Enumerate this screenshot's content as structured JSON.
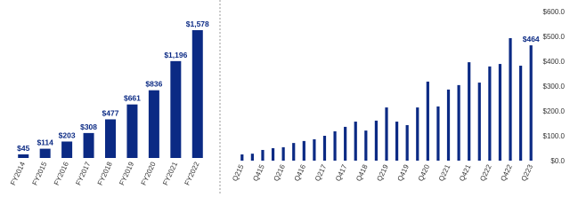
{
  "chart_data": [
    {
      "type": "bar",
      "color": "#0b2a84",
      "categories": [
        "FY2014",
        "FY2015",
        "FY2016",
        "FY2017",
        "FY2018",
        "FY2019",
        "FY2020",
        "FY2021",
        "FY2022"
      ],
      "values": [
        45,
        114,
        203,
        308,
        477,
        661,
        836,
        1196,
        1578
      ],
      "value_labels": [
        "$45",
        "$114",
        "$203",
        "$308",
        "$477",
        "$661",
        "$836",
        "$1,196",
        "$1,578"
      ]
    },
    {
      "type": "bar",
      "color": "#0b2a84",
      "categories": [
        "Q215",
        null,
        "Q415",
        null,
        "Q216",
        null,
        "Q416",
        null,
        "Q217",
        null,
        "Q417",
        null,
        "Q418",
        null,
        "Q219",
        null,
        "Q419",
        null,
        "Q420",
        null,
        "Q221",
        null,
        "Q421",
        null,
        "Q222",
        null,
        "Q422",
        null,
        "Q223"
      ],
      "values": [
        25,
        28,
        43,
        50,
        54,
        71,
        79,
        86,
        100,
        118,
        136,
        157,
        121,
        161,
        214,
        157,
        143,
        214,
        318,
        218,
        286,
        304,
        396,
        314,
        379,
        389,
        493,
        382,
        464
      ],
      "value_labels": [
        null,
        null,
        null,
        null,
        null,
        null,
        null,
        null,
        null,
        null,
        null,
        null,
        null,
        null,
        null,
        null,
        null,
        null,
        null,
        null,
        null,
        null,
        null,
        null,
        null,
        null,
        null,
        null,
        "$464"
      ],
      "ylim": [
        0,
        600
      ],
      "yticks": [
        {
          "value": 0,
          "label": "$0.0"
        },
        {
          "value": 100,
          "label": "$100.0"
        },
        {
          "value": 200,
          "label": "$200.0"
        },
        {
          "value": 300,
          "label": "$300.0"
        },
        {
          "value": 400,
          "label": "$400.0"
        },
        {
          "value": 500,
          "label": "$500.0"
        },
        {
          "value": 600,
          "label": "$600.0"
        }
      ]
    }
  ]
}
